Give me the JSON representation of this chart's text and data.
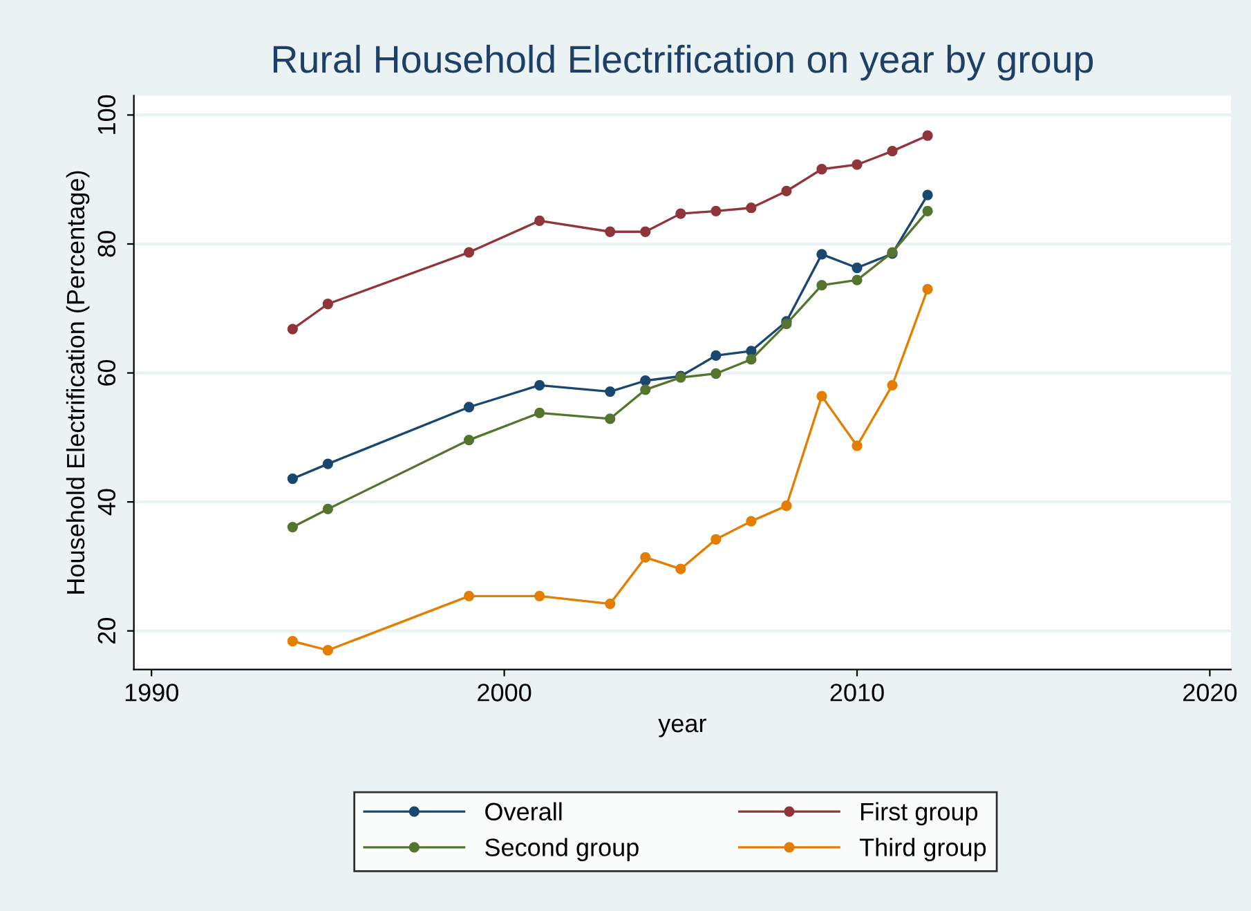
{
  "chart_data": {
    "type": "line",
    "title": "Rural Household Electrification on year by group",
    "xlabel": "year",
    "ylabel": "Household Electrification (Percentage)",
    "x": [
      1994,
      1995,
      1999,
      2001,
      2003,
      2004,
      2005,
      2006,
      2007,
      2008,
      2009,
      2010,
      2011,
      2012
    ],
    "series": [
      {
        "name": "Overall",
        "color": "#1a476f",
        "values": [
          43.6,
          45.9,
          54.7,
          58.1,
          57.1,
          58.8,
          59.5,
          62.7,
          63.4,
          68.0,
          78.4,
          76.3,
          78.5,
          87.6
        ]
      },
      {
        "name": "First group",
        "color": "#90353b",
        "values": [
          66.8,
          70.7,
          78.7,
          83.6,
          81.9,
          81.9,
          84.7,
          85.1,
          85.6,
          88.2,
          91.6,
          92.3,
          94.4,
          96.8
        ]
      },
      {
        "name": "Second group",
        "color": "#55752f",
        "values": [
          36.1,
          38.9,
          49.6,
          53.8,
          52.9,
          57.4,
          59.3,
          59.9,
          62.1,
          67.6,
          73.6,
          74.4,
          78.7,
          85.1
        ]
      },
      {
        "name": "Third group",
        "color": "#e37e00",
        "values": [
          18.4,
          17.0,
          25.4,
          25.4,
          24.2,
          31.4,
          29.6,
          34.2,
          37.0,
          39.4,
          56.4,
          48.7,
          58.1,
          73.0
        ]
      }
    ],
    "xlim": [
      1989.5,
      2020.6
    ],
    "ylim": [
      14,
      103
    ],
    "xticks": [
      1990,
      2000,
      2010,
      2020
    ],
    "yticks": [
      20,
      40,
      60,
      80,
      100
    ],
    "grid": "y",
    "legend": "bottom",
    "marker": "circle",
    "line_style": "solid"
  }
}
